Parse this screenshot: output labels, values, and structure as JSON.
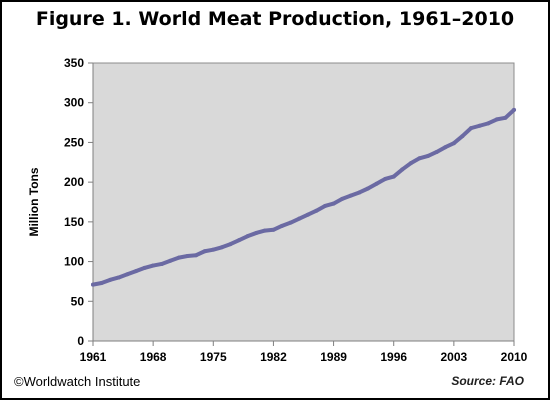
{
  "chart_data": {
    "type": "line",
    "title": "Figure 1. World Meat Production, 1961–2010",
    "xlabel": "",
    "ylabel": "Million Tons",
    "xlim": [
      1961,
      2010
    ],
    "ylim": [
      0,
      350
    ],
    "x_ticks": [
      1961,
      1968,
      1975,
      1982,
      1989,
      1996,
      2003,
      2010
    ],
    "y_ticks": [
      0,
      50,
      100,
      150,
      200,
      250,
      300,
      350
    ],
    "grid": false,
    "legend": "none",
    "line_color": "#6b6aa3",
    "plot_background": "#d9d9d9",
    "series": [
      {
        "x": [
          1961,
          1962,
          1963,
          1964,
          1965,
          1966,
          1967,
          1968,
          1969,
          1970,
          1971,
          1972,
          1973,
          1974,
          1975,
          1976,
          1977,
          1978,
          1979,
          1980,
          1981,
          1982,
          1983,
          1984,
          1985,
          1986,
          1987,
          1988,
          1989,
          1990,
          1991,
          1992,
          1993,
          1994,
          1995,
          1996,
          1997,
          1998,
          1999,
          2000,
          2001,
          2002,
          2003,
          2004,
          2005,
          2006,
          2007,
          2008,
          2009,
          2010
        ],
        "values": [
          71,
          73,
          77,
          80,
          84,
          88,
          92,
          95,
          97,
          101,
          105,
          107,
          108,
          113,
          115,
          118,
          122,
          127,
          132,
          136,
          139,
          140,
          145,
          149,
          154,
          159,
          164,
          170,
          173,
          179,
          183,
          187,
          192,
          198,
          204,
          207,
          216,
          224,
          230,
          233,
          238,
          244,
          249,
          258,
          268,
          271,
          274,
          279,
          281,
          291
        ]
      }
    ]
  },
  "footer": {
    "copyright": "©Worldwatch Institute",
    "source": "Source: FAO"
  }
}
